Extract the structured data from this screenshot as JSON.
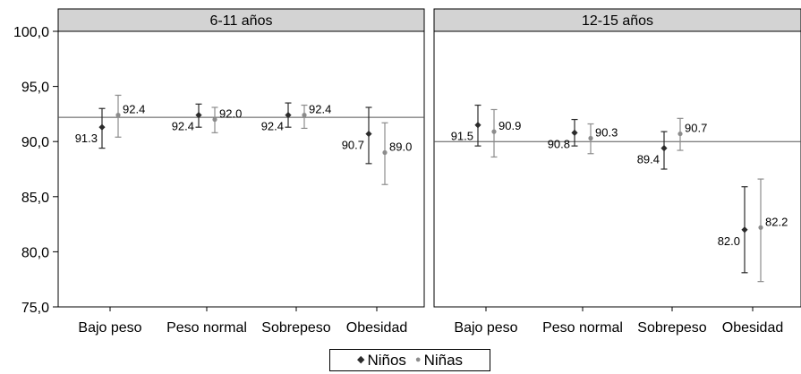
{
  "chart_data": {
    "type": "errorbar",
    "ylim": [
      75,
      100
    ],
    "yticks": [
      "75,0",
      "80,0",
      "85,0",
      "90,0",
      "95,0",
      "100,0"
    ],
    "ytick_values": [
      75,
      80,
      85,
      90,
      95,
      100
    ],
    "categories": [
      "Bajo peso",
      "Peso normal",
      "Sobrepeso",
      "Obesidad"
    ],
    "legend": {
      "position": "bottom"
    },
    "colors": {
      "Niños": "#2b2b2b",
      "Niñas": "#8c8c8c",
      "panel_header": "#d3d3d3"
    },
    "panels": [
      {
        "title": "6-11 años",
        "reference_line": 92.2,
        "series": [
          {
            "name": "Niños",
            "values": [
              91.3,
              92.4,
              92.4,
              90.7
            ],
            "labels": [
              "91.3",
              "92.4",
              "92.4",
              "90.7"
            ],
            "lower": [
              89.4,
              91.3,
              91.3,
              88.0
            ],
            "upper": [
              93.0,
              93.4,
              93.5,
              93.1
            ]
          },
          {
            "name": "Niñas",
            "values": [
              92.4,
              92.0,
              92.4,
              89.0
            ],
            "labels": [
              "92.4",
              "92.0",
              "92.4",
              "89.0"
            ],
            "lower": [
              90.4,
              90.8,
              91.2,
              86.1
            ],
            "upper": [
              94.2,
              93.1,
              93.3,
              91.7
            ]
          }
        ]
      },
      {
        "title": "12-15 años",
        "reference_line": 90.0,
        "series": [
          {
            "name": "Niños",
            "values": [
              91.5,
              90.8,
              89.4,
              82.0
            ],
            "labels": [
              "91.5",
              "90.8",
              "89.4",
              "82.0"
            ],
            "lower": [
              89.6,
              89.6,
              87.5,
              78.1
            ],
            "upper": [
              93.3,
              92.0,
              90.9,
              85.9
            ]
          },
          {
            "name": "Niñas",
            "values": [
              90.9,
              90.3,
              90.7,
              82.2
            ],
            "labels": [
              "90.9",
              "90.3",
              "90.7",
              "82.2"
            ],
            "lower": [
              88.6,
              88.9,
              89.2,
              77.3
            ],
            "upper": [
              92.9,
              91.6,
              92.1,
              86.6
            ]
          }
        ]
      }
    ]
  }
}
